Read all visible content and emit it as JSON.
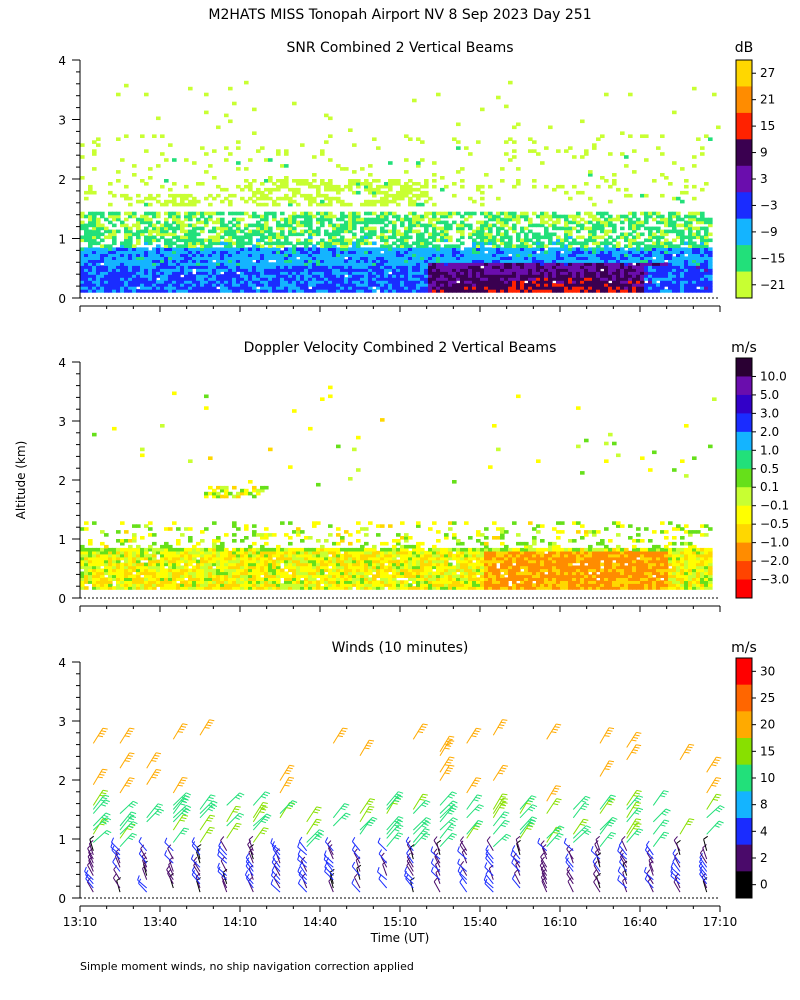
{
  "title": "M2HATS MISS Tonopah Airport NV   8 Sep 2023 Day 251",
  "ylabel": "Altitude (km)",
  "xlabel": "Time (UT)",
  "footnote": "Simple moment winds, no ship navigation correction applied",
  "chart_data": [
    {
      "type": "heatmap",
      "title": "SNR Combined 2 Vertical Beams",
      "colorbar_label": "dB",
      "colorbar_ticks": [
        "27",
        "21",
        "15",
        "9",
        "3",
        "−3",
        "−9",
        "−15",
        "−21"
      ],
      "colorbar_colors": [
        "#ffd700",
        "#ff8c00",
        "#ff2200",
        "#3a0050",
        "#6a0dad",
        "#1a2cff",
        "#14b4ff",
        "#22e07a",
        "#c8ff32"
      ],
      "y_ticks": [
        0,
        1,
        2,
        3,
        4
      ],
      "ylim": [
        0,
        4
      ],
      "x_range_minutes": [
        0,
        240
      ],
      "notes": "Broad -21..-9 dB returns up to ~1.4 km all day; -9..-3 dB layer 0.1-0.8 km; high values 3-21 dB near surface 15:20-16:40 UT"
    },
    {
      "type": "heatmap",
      "title": "Doppler Velocity Combined 2 Vertical Beams",
      "colorbar_label": "m/s",
      "colorbar_ticks": [
        "10.0",
        "5.0",
        "3.0",
        "2.0",
        "1.0",
        "0.5",
        "0.1",
        "−0.1",
        "−0.5",
        "−1.0",
        "−2.0",
        "−3.0"
      ],
      "colorbar_colors": [
        "#2a0033",
        "#6a0dad",
        "#3200c8",
        "#1a2cff",
        "#14b4ff",
        "#22e07a",
        "#66e01a",
        "#c8ff32",
        "#ffff00",
        "#ffd700",
        "#ff8c00",
        "#ff4400",
        "#ff0000"
      ],
      "y_ticks": [
        0,
        1,
        2,
        3,
        4
      ],
      "ylim": [
        0,
        4
      ],
      "x_range_minutes": [
        0,
        240
      ],
      "notes": "Mostly -0.1 to -2.0 m/s below 0.9 km; strongest sinking (-1..-2 m/s) 15:00-16:20 UT"
    },
    {
      "type": "scatter",
      "title": "Winds (10 minutes)",
      "colorbar_label": "m/s",
      "colorbar_ticks": [
        "30",
        "25",
        "20",
        "15",
        "10",
        "8",
        "4",
        "2",
        "0"
      ],
      "colorbar_colors": [
        "#ff0000",
        "#ff6600",
        "#ffaa00",
        "#88e000",
        "#22e07a",
        "#14b4ff",
        "#1a2cff",
        "#4a0a6a",
        "#000000"
      ],
      "y_ticks": [
        0,
        1,
        2,
        3,
        4
      ],
      "ylim": [
        0,
        4
      ],
      "x_ticks": [
        "13:10",
        "13:40",
        "14:10",
        "14:40",
        "15:10",
        "15:40",
        "16:10",
        "16:40",
        "17:10"
      ],
      "x_range_minutes": [
        0,
        240
      ],
      "barb_times_minutes": [
        5,
        15,
        25,
        35,
        45,
        55,
        65,
        75,
        85,
        95,
        105,
        115,
        125,
        135,
        145,
        155,
        165,
        175,
        185,
        195,
        205,
        215,
        225,
        235
      ],
      "notes": "Wind barbs every 10 min from ~0.1 to ~1.5 km; speeds 0-4 m/s near surface, 8-15 m/s near 1-1.5 km, up to ~20-25 m/s near 2-2.7 km"
    }
  ]
}
